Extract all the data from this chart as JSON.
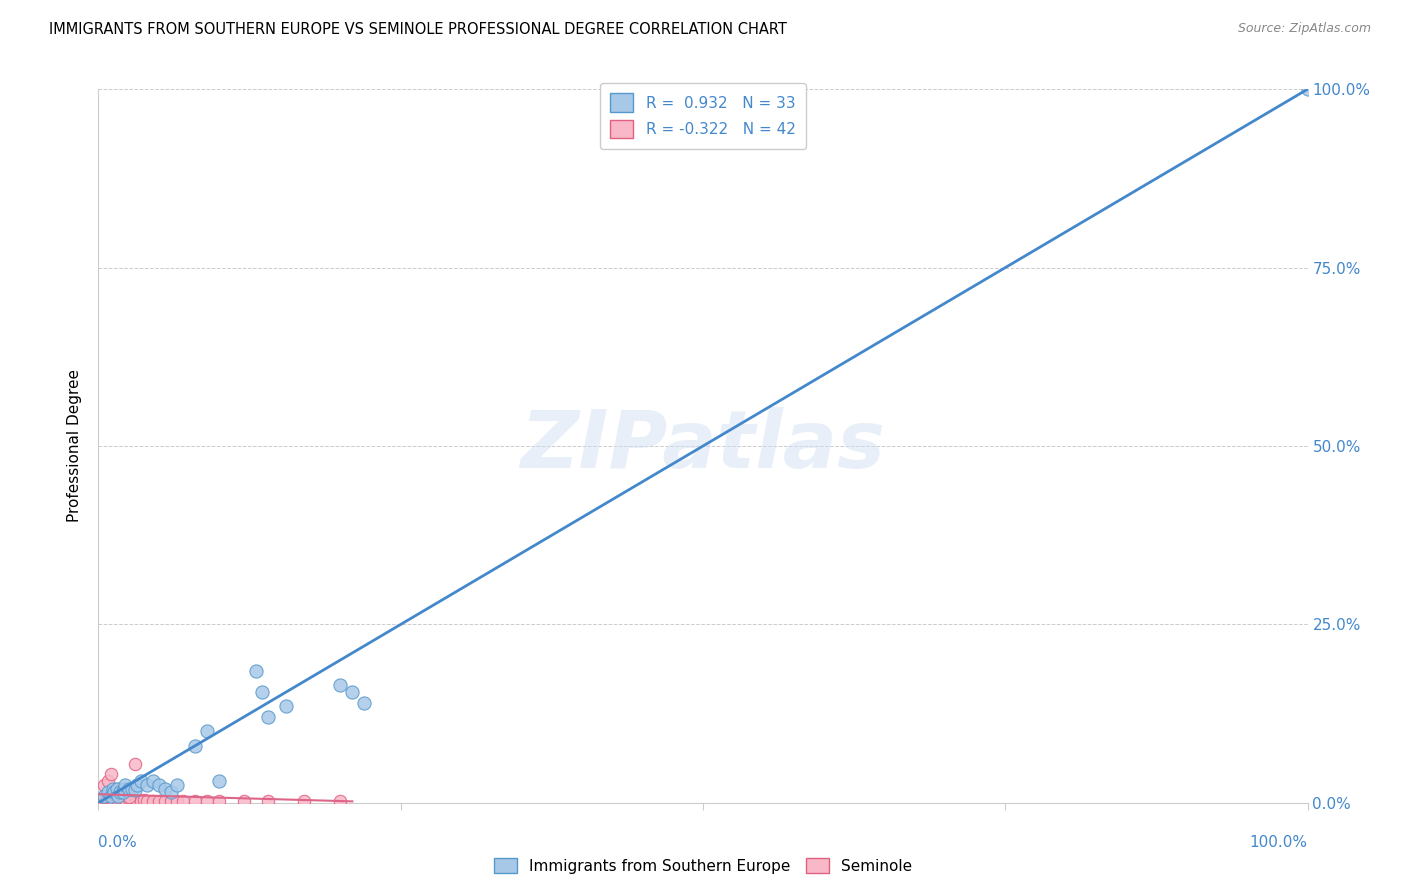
{
  "title": "IMMIGRANTS FROM SOUTHERN EUROPE VS SEMINOLE PROFESSIONAL DEGREE CORRELATION CHART",
  "source": "Source: ZipAtlas.com",
  "ylabel": "Professional Degree",
  "ytick_labels": [
    "0.0%",
    "25.0%",
    "50.0%",
    "75.0%",
    "100.0%"
  ],
  "ytick_positions": [
    0.0,
    0.25,
    0.5,
    0.75,
    1.0
  ],
  "xtick_labels_left": "0.0%",
  "xtick_labels_right": "100.0%",
  "xlim": [
    0.0,
    1.0
  ],
  "ylim": [
    0.0,
    1.0
  ],
  "blue_color": "#a8c8e8",
  "blue_edge_color": "#5599cc",
  "blue_line_color": "#4488cc",
  "pink_color": "#f8b8c8",
  "pink_edge_color": "#e06080",
  "pink_line_color": "#dd6688",
  "blue_R": 0.932,
  "blue_N": 33,
  "pink_R": -0.322,
  "pink_N": 42,
  "watermark": "ZIPatlas",
  "legend_label_blue": "Immigrants from Southern Europe",
  "legend_label_pink": "Seminole",
  "blue_line_x": [
    0.0,
    1.0
  ],
  "blue_line_y": [
    0.0,
    1.0
  ],
  "pink_line_x": [
    0.0,
    0.21
  ],
  "pink_line_y": [
    0.012,
    0.002
  ],
  "blue_scatter_x": [
    0.005,
    0.008,
    0.01,
    0.012,
    0.013,
    0.015,
    0.016,
    0.018,
    0.02,
    0.021,
    0.022,
    0.025,
    0.028,
    0.03,
    0.032,
    0.035,
    0.04,
    0.045,
    0.05,
    0.055,
    0.06,
    0.065,
    0.08,
    0.09,
    0.1,
    0.13,
    0.135,
    0.14,
    0.2,
    0.21,
    0.22,
    0.155,
    1.0
  ],
  "blue_scatter_y": [
    0.01,
    0.015,
    0.01,
    0.02,
    0.015,
    0.02,
    0.01,
    0.015,
    0.015,
    0.02,
    0.025,
    0.02,
    0.02,
    0.018,
    0.025,
    0.03,
    0.025,
    0.03,
    0.025,
    0.02,
    0.015,
    0.025,
    0.08,
    0.1,
    0.03,
    0.185,
    0.155,
    0.12,
    0.165,
    0.155,
    0.14,
    0.135,
    1.0
  ],
  "pink_scatter_x": [
    0.003,
    0.005,
    0.006,
    0.007,
    0.008,
    0.009,
    0.01,
    0.011,
    0.012,
    0.013,
    0.015,
    0.016,
    0.018,
    0.02,
    0.022,
    0.025,
    0.028,
    0.03,
    0.032,
    0.035,
    0.038,
    0.04,
    0.045,
    0.05,
    0.055,
    0.06,
    0.065,
    0.07,
    0.08,
    0.09,
    0.1,
    0.12,
    0.14,
    0.17,
    0.2,
    0.005,
    0.008,
    0.01,
    0.015,
    0.02,
    0.025,
    0.03
  ],
  "pink_scatter_y": [
    0.005,
    0.008,
    0.003,
    0.005,
    0.004,
    0.006,
    0.005,
    0.004,
    0.005,
    0.003,
    0.005,
    0.004,
    0.005,
    0.005,
    0.005,
    0.005,
    0.004,
    0.004,
    0.003,
    0.003,
    0.004,
    0.003,
    0.003,
    0.003,
    0.003,
    0.003,
    0.003,
    0.003,
    0.003,
    0.003,
    0.003,
    0.003,
    0.003,
    0.003,
    0.003,
    0.025,
    0.03,
    0.04,
    0.02,
    0.015,
    0.008,
    0.055
  ]
}
